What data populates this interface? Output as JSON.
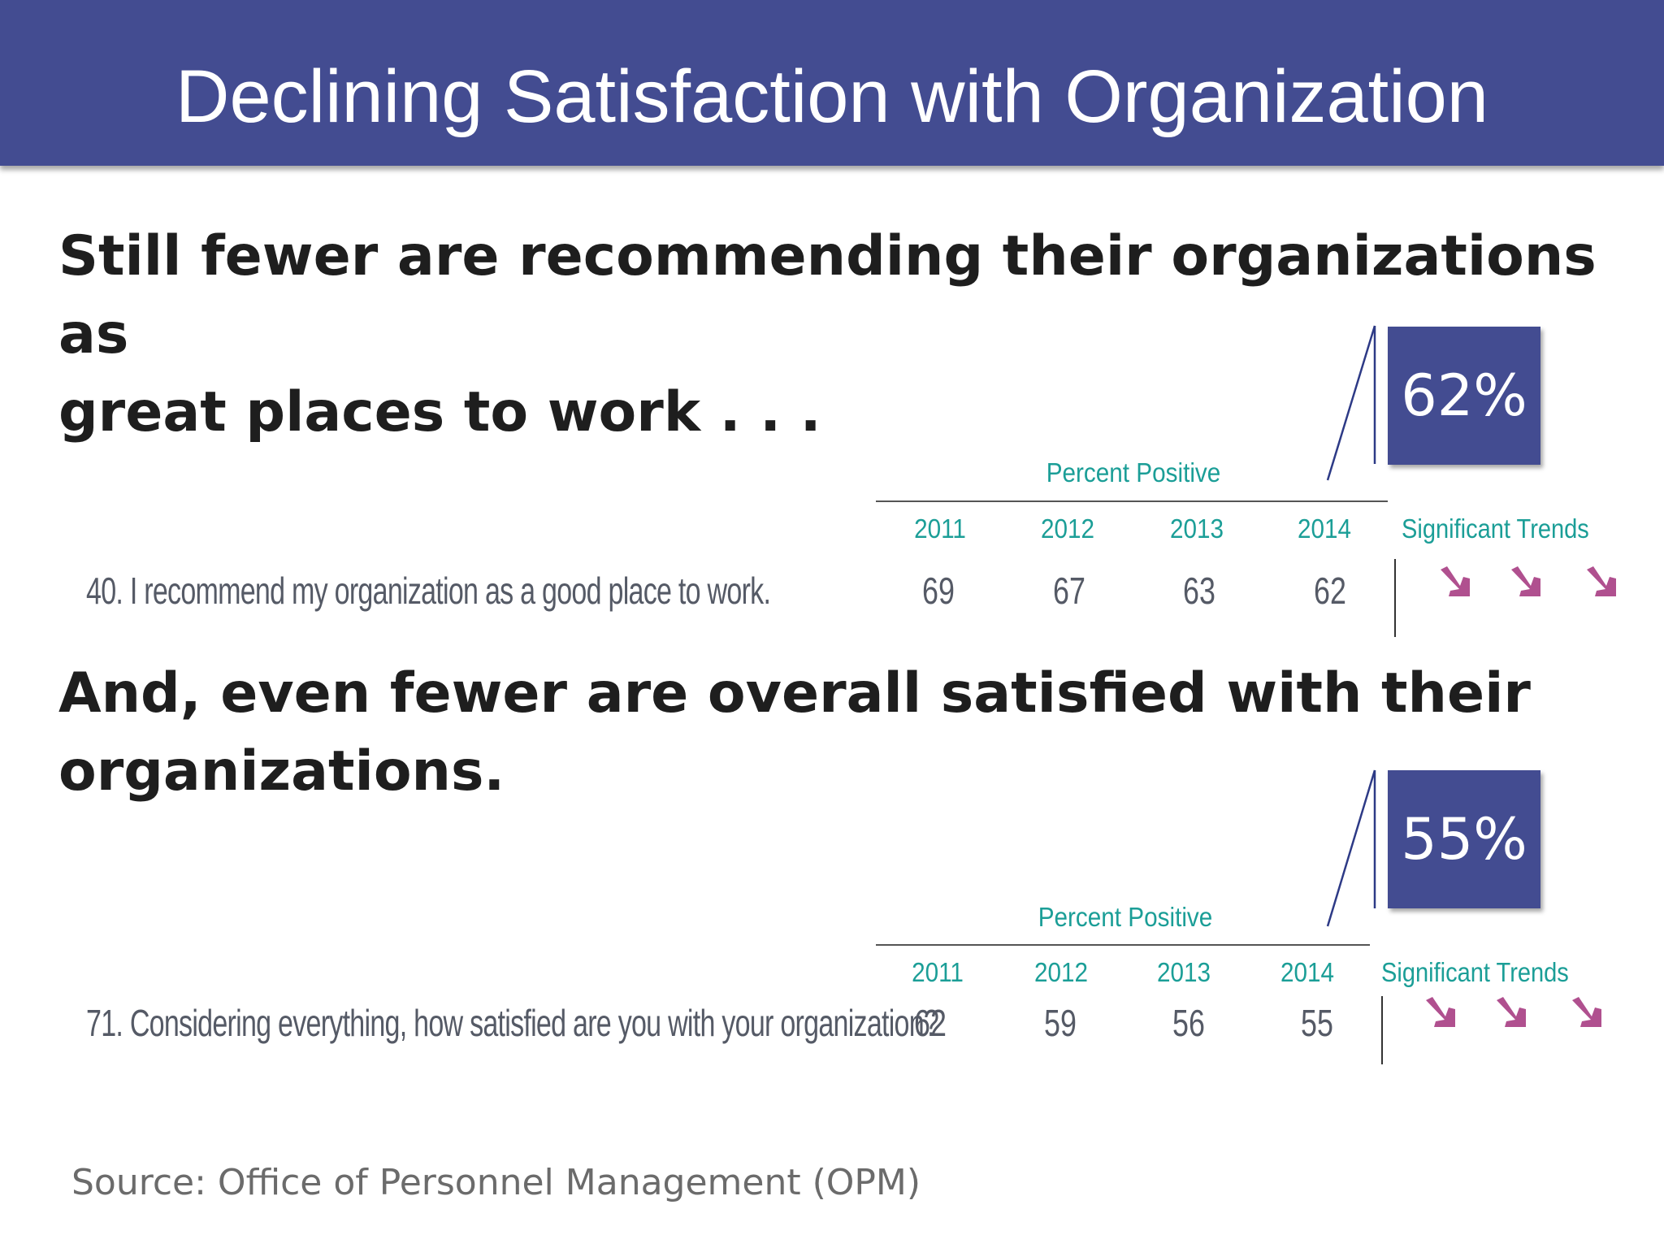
{
  "header": {
    "title": "Declining Satisfaction with Organization"
  },
  "section1": {
    "heading_line1": "Still fewer are recommending their organizations as",
    "heading_line2": "great places to work . . .",
    "callout": "62%",
    "percent_positive": "Percent Positive",
    "years": [
      "2011",
      "2012",
      "2013",
      "2014"
    ],
    "trends_label": "Significant Trends",
    "question": "40.  I recommend my organization as a good place to work.",
    "values": [
      "69",
      "67",
      "63",
      "62"
    ],
    "trend_icons": [
      "arrow-down-right-icon",
      "arrow-down-right-icon",
      "arrow-down-right-icon"
    ]
  },
  "section2": {
    "heading_line1": "And, even fewer are overall satisfied with their",
    "heading_line2": "organizations.",
    "callout": "55%",
    "percent_positive": "Percent Positive",
    "years": [
      "2011",
      "2012",
      "2013",
      "2014"
    ],
    "trends_label": "Significant Trends",
    "question": "71.  Considering everything, how satisfied are you with your organization?",
    "values": [
      "62",
      "59",
      "56",
      "55"
    ],
    "trend_icons": [
      "arrow-down-right-icon",
      "arrow-down-right-icon",
      "arrow-down-right-icon"
    ]
  },
  "footer": {
    "source": "Source: Office of Personnel Management (OPM)"
  },
  "colors": {
    "header_bg": "#434c91",
    "teal_text": "#1b9e97",
    "trend_arrow": "#b0508f"
  }
}
